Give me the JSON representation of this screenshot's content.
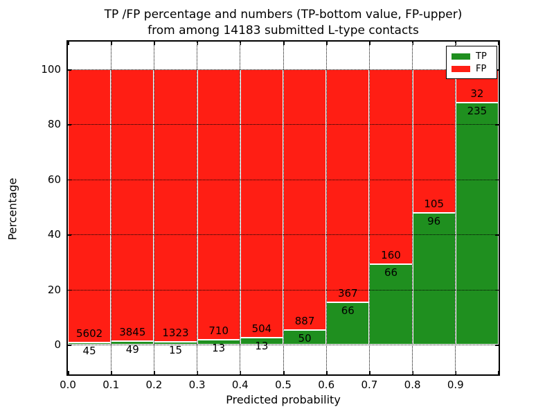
{
  "title": {
    "line1": "TP /FP percentage and numbers (TP-bottom value, FP-upper)",
    "line2": "from among 14183 submitted L-type contacts"
  },
  "axes": {
    "xlabel": "Predicted probability",
    "ylabel": "Percentage",
    "x_tick_labels": [
      "0.0",
      "0.1",
      "0.2",
      "0.3",
      "0.4",
      "0.5",
      "0.6",
      "0.7",
      "0.8",
      "0.9"
    ],
    "y_tick_labels": [
      "0",
      "20",
      "40",
      "60",
      "80",
      "100"
    ]
  },
  "legend": {
    "items": [
      {
        "label": "TP",
        "color": "#1f8f1f"
      },
      {
        "label": "FP",
        "color": "#ff1e14"
      }
    ],
    "position": "upper right"
  },
  "colors": {
    "tp": "#1f8f1f",
    "fp": "#ff1e14",
    "grid": "#000000",
    "background": "#ffffff"
  },
  "chart_data": {
    "type": "bar",
    "stacked": true,
    "normalized_to_percent": true,
    "title": "TP /FP percentage and numbers (TP-bottom value, FP-upper) from among 14183 submitted L-type contacts",
    "xlabel": "Predicted probability",
    "ylabel": "Percentage",
    "xlim": [
      0.0,
      1.0
    ],
    "ylim": [
      -10.8,
      110.2
    ],
    "bin_width": 0.1,
    "bin_starts": [
      0.0,
      0.1,
      0.2,
      0.3,
      0.4,
      0.5,
      0.6,
      0.7,
      0.8,
      0.9
    ],
    "series": [
      {
        "name": "TP",
        "counts": [
          45,
          49,
          15,
          13,
          13,
          50,
          66,
          66,
          96,
          235
        ],
        "percent": [
          0.8,
          1.3,
          1.1,
          1.8,
          2.5,
          5.3,
          15.2,
          29.2,
          47.8,
          88.0
        ]
      },
      {
        "name": "FP",
        "counts": [
          5602,
          3845,
          1323,
          710,
          504,
          887,
          367,
          160,
          105,
          32
        ],
        "percent": [
          99.2,
          98.7,
          98.9,
          98.2,
          97.5,
          94.7,
          84.8,
          70.8,
          52.2,
          12.0
        ]
      }
    ],
    "total_contacts": 14183,
    "grid": "dotted, both axes, on top of bars",
    "legend_position": "upper right"
  }
}
